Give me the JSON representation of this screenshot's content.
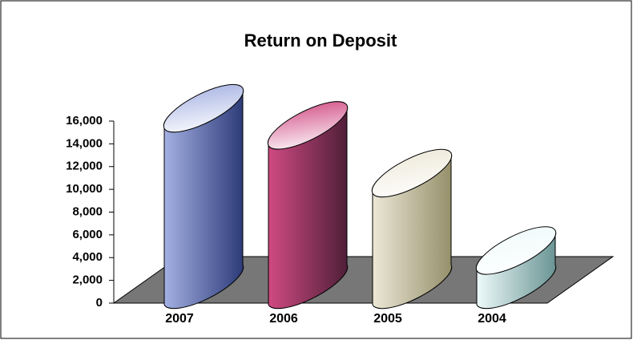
{
  "chart_data": {
    "type": "cylinder",
    "title": "Return on Deposit",
    "categories": [
      "2007",
      "2006",
      "2005",
      "2004"
    ],
    "values": [
      15500,
      14000,
      9800,
      3000
    ],
    "colors": [
      [
        "#a3b0e2",
        "#2c3a78"
      ],
      [
        "#d04a82",
        "#4e1f38"
      ],
      [
        "#ece8d6",
        "#958f6a"
      ],
      [
        "#eefafa",
        "#6a9494"
      ]
    ],
    "ylim": [
      0,
      16000
    ],
    "yticks": [
      0,
      {
        "value": 2000,
        "label": "2,000"
      },
      {
        "value": 4000,
        "label": "4,000"
      },
      {
        "value": 6000,
        "label": "6,000"
      },
      {
        "value": 8000,
        "label": "8,000"
      },
      {
        "value": 10000,
        "label": "10,000"
      },
      {
        "value": 12000,
        "label": "12,000"
      },
      {
        "value": 14000,
        "label": "14,000"
      },
      {
        "value": 16000,
        "label": "16,000"
      }
    ]
  }
}
